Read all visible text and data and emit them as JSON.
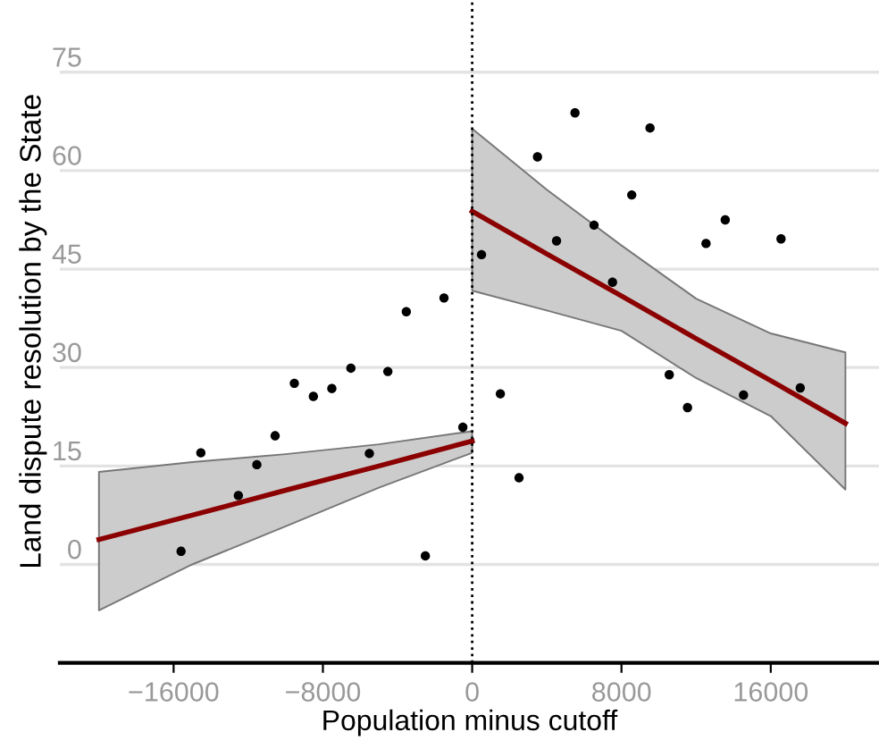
{
  "chart_data": {
    "type": "scatter",
    "xlabel": "Population minus cutoff",
    "ylabel": "Land dispute resolution by the State",
    "xlim": [
      -22100,
      21800
    ],
    "ylim": [
      -15,
      86
    ],
    "xticks": [
      {
        "value": -16000,
        "label": "−16000"
      },
      {
        "value": -8000,
        "label": "−8000"
      },
      0,
      8000,
      16000
    ],
    "yticks": [
      0,
      15,
      30,
      45,
      60,
      75
    ],
    "grid": "y",
    "marker": "circle",
    "ref_lines": [
      {
        "axis": "x",
        "value": 0,
        "label": null,
        "color": "#000000",
        "line_style": "dotted"
      }
    ],
    "series": [
      {
        "color": "#000000",
        "x": [
          -15600,
          -14540,
          -12530,
          -11540,
          -10560,
          -9530,
          -8510,
          -7520,
          -6500,
          -5510,
          -4520,
          -3530,
          -2510,
          -1510,
          -500,
          500,
          1510,
          2510,
          3500,
          4520,
          5510,
          6530,
          7520,
          8550,
          9530,
          10560,
          11540,
          12530,
          13560,
          14540,
          16550,
          17580
        ],
        "values": [
          2.0,
          17.0,
          10.5,
          15.2,
          19.6,
          27.6,
          25.6,
          26.8,
          29.9,
          16.9,
          29.4,
          38.5,
          1.3,
          40.6,
          20.9,
          47.2,
          26.0,
          13.2,
          62.1,
          49.3,
          68.8,
          51.7,
          43.0,
          56.3,
          66.5,
          28.9,
          23.9,
          48.9,
          52.5,
          25.8,
          49.6,
          26.9
        ]
      },
      {
        "type": "line",
        "color": "#8b0000",
        "marker": "none",
        "x": [
          -20000,
          -15000,
          -10000,
          -5000,
          0
        ],
        "values": [
          3.8,
          7.5,
          11.3,
          15.0,
          18.8
        ],
        "lower": [
          -7.0,
          0.0,
          5.8,
          11.7,
          17.0
        ],
        "upper": [
          14.1,
          15.6,
          16.8,
          18.3,
          20.3
        ]
      },
      {
        "type": "line",
        "color": "#8b0000",
        "marker": "none",
        "x": [
          0,
          4000,
          8000,
          12000,
          16000,
          20000
        ],
        "values": [
          53.8,
          47.3,
          40.9,
          34.4,
          28.0,
          21.5
        ],
        "lower": [
          41.7,
          38.7,
          35.6,
          28.4,
          22.6,
          11.4
        ],
        "upper": [
          66.4,
          57.1,
          48.6,
          40.5,
          35.2,
          32.3
        ]
      }
    ]
  }
}
